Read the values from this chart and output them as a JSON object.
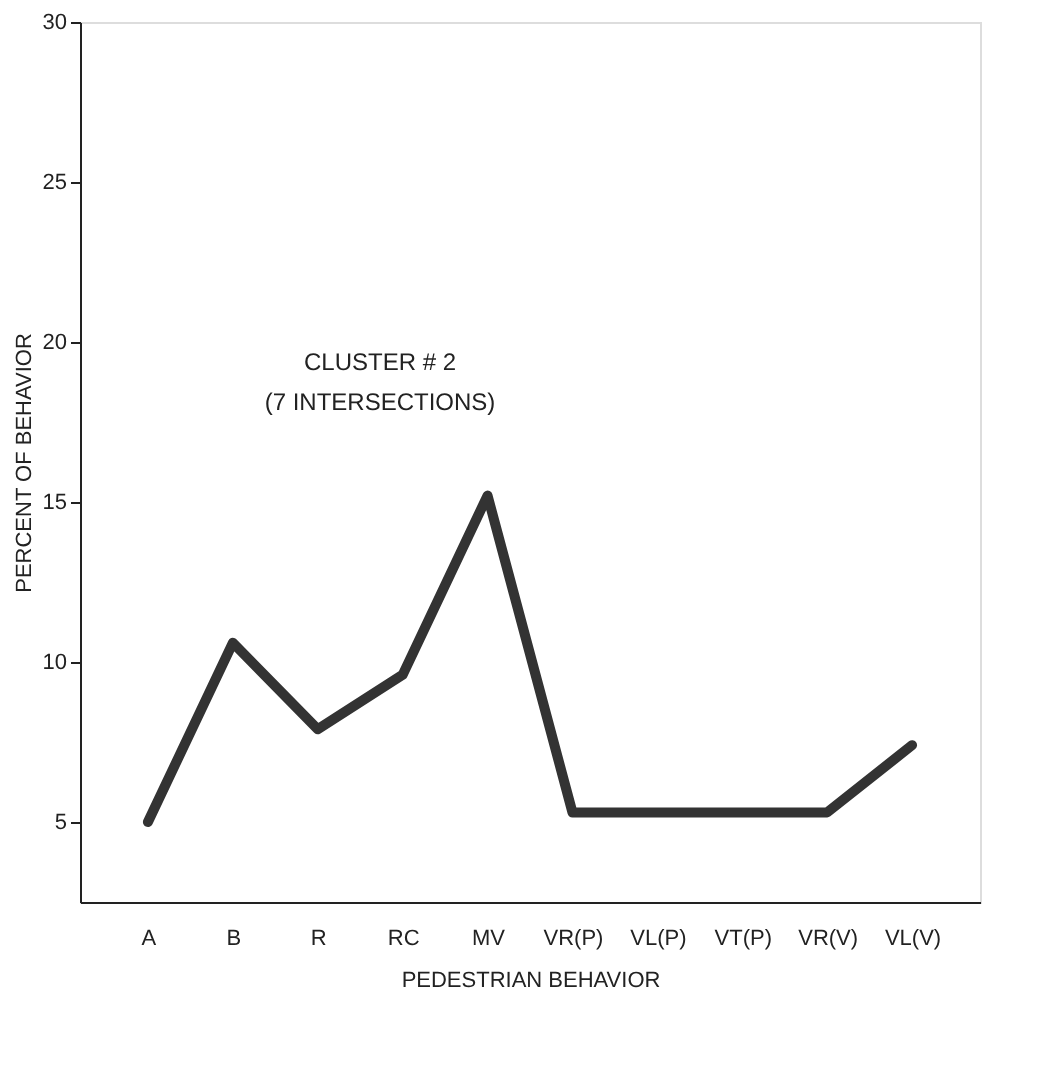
{
  "chart_data": {
    "type": "line",
    "xlabel": "PEDESTRIAN BEHAVIOR",
    "ylabel": "PERCENT OF BEHAVIOR",
    "categories": [
      "A",
      "B",
      "R",
      "RC",
      "MV",
      "VR(P)",
      "VL(P)",
      "VT(P)",
      "VR(V)",
      "VL(V)"
    ],
    "series": [
      {
        "color": "#333333",
        "values": [
          5.0,
          10.6,
          7.9,
          9.6,
          15.2,
          5.3,
          5.3,
          5.3,
          5.3,
          7.4
        ]
      }
    ],
    "ylim": [
      2.5,
      30
    ],
    "yticks": [
      5,
      10,
      15,
      20,
      25,
      30
    ],
    "grid": false,
    "marker": "none",
    "line_style": "solid",
    "legend": false,
    "annotations": [
      "CLUSTER # 2",
      "(7 INTERSECTIONS)"
    ]
  }
}
